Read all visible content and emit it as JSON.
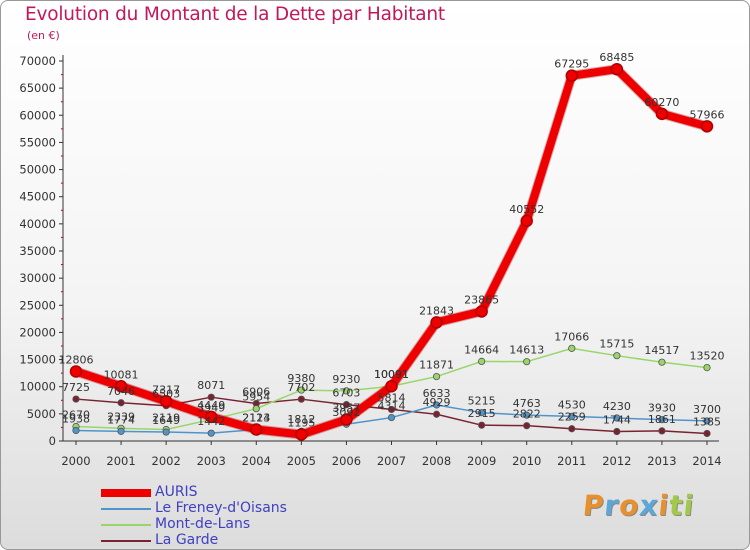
{
  "header": {
    "title": "Evolution du Montant de la Dette par Habitant",
    "unit": "(en €)"
  },
  "logo": {
    "text": "Proxiti",
    "letters": [
      {
        "ch": "P",
        "color": "#e8902b"
      },
      {
        "ch": "r",
        "color": "#5aa7d8"
      },
      {
        "ch": "o",
        "color": "#e8902b"
      },
      {
        "ch": "x",
        "color": "#5aa7d8"
      },
      {
        "ch": "i",
        "color": "#e8902b"
      },
      {
        "ch": "t",
        "color": "#a3c94a"
      },
      {
        "ch": "i",
        "color": "#a3c94a"
      }
    ]
  },
  "chart_data": {
    "type": "line",
    "title": "Evolution du Montant de la Dette par Habitant",
    "ylabel": "(en €)",
    "xlabel": "",
    "x": [
      "2000",
      "2001",
      "2002",
      "2003",
      "2004",
      "2005",
      "2006",
      "2007",
      "2008",
      "2009",
      "2010",
      "2011",
      "2012",
      "2013",
      "2014"
    ],
    "ylim": [
      0,
      70000
    ],
    "yticks": [
      0,
      5000,
      10000,
      15000,
      20000,
      25000,
      30000,
      35000,
      40000,
      45000,
      50000,
      55000,
      60000,
      65000,
      70000
    ],
    "grid": false,
    "legend": "bottom-left",
    "series": [
      {
        "name": "AURIS",
        "color": "#ee0000",
        "width": 8,
        "values": [
          12806,
          10081,
          7317,
          4449,
          2113,
          1195,
          3957,
          10091,
          21843,
          23865,
          40552,
          67295,
          68485,
          60270,
          57966
        ],
        "labels": [
          "12806",
          "10081",
          "7317",
          "4449",
          "2113",
          "1195",
          "3957",
          "10091",
          "21843",
          "23865",
          "40552",
          "67295",
          "68485",
          "60270",
          "57966"
        ]
      },
      {
        "name": "Le Freney-d'Oisans",
        "color": "#4f95cc",
        "width": 1.5,
        "values": [
          1938,
          1774,
          1649,
          1442,
          2124,
          1812,
          3092,
          4314,
          6633,
          5215,
          4763,
          4530,
          4230,
          3930,
          3700
        ],
        "labels": [
          "1938",
          "1774",
          "1649",
          "1442",
          "2124",
          "1812",
          "3092",
          "4314",
          "6633",
          "5215",
          "4763",
          "4530",
          "4230",
          "3930",
          "3700"
        ]
      },
      {
        "name": "Mont-de-Lans",
        "color": "#99d66a",
        "width": 1.5,
        "values": [
          2670,
          2339,
          2119,
          3949,
          5954,
          9380,
          9230,
          10091,
          11871,
          14664,
          14613,
          17066,
          15715,
          14517,
          13520
        ],
        "labels": [
          "2670",
          "2339",
          "2119",
          "3949",
          "5954",
          "9380",
          "9230",
          "10091",
          "11871",
          "14664",
          "14613",
          "17066",
          "15715",
          "14517",
          "13520"
        ]
      },
      {
        "name": "La Garde",
        "color": "#7a2330",
        "width": 1.5,
        "values": [
          7725,
          7046,
          6503,
          8071,
          6906,
          7702,
          6703,
          5814,
          4929,
          2915,
          2822,
          2259,
          1744,
          1861,
          1385
        ],
        "labels": [
          "7725",
          "7046",
          "6503",
          "8071",
          "6906",
          "7702",
          "6703",
          "5814",
          "4929",
          "2915",
          "2822",
          "2259",
          "1744",
          "1861",
          "1385"
        ]
      }
    ]
  }
}
